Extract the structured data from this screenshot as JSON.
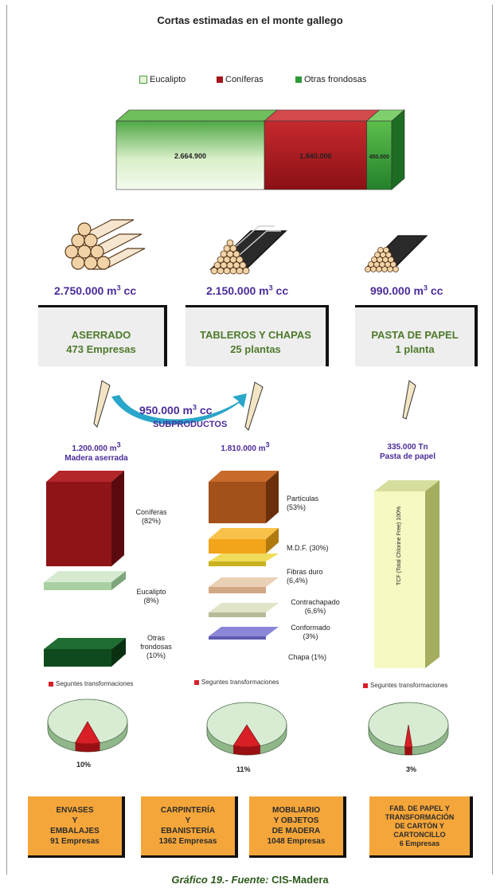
{
  "title": "Cortas estimadas en el monte gallego",
  "legend": [
    "Eucalipto",
    "Coníferas",
    "Otras frondosas"
  ],
  "colors": {
    "eucalipto": "#d9efc9",
    "coniferas": "#a3161b",
    "otras_frondosas": "#2f9a3a",
    "secondary": "#d81f26",
    "industry": "#f5a63a",
    "volume_text": "#4b2c9a"
  },
  "chart_data": [
    {
      "type": "bar",
      "title": "Cortas estimadas en el monte gallego",
      "categories": [
        "Cortas"
      ],
      "series": [
        {
          "name": "Eucalipto",
          "values": [
            2664900
          ],
          "label": "2.664.900"
        },
        {
          "name": "Coníferas",
          "values": [
            1840000
          ],
          "label": "1.840.000"
        },
        {
          "name": "Otras frondosas",
          "values": [
            450000
          ],
          "label": "450.000"
        }
      ],
      "stacked": true,
      "legend": "top"
    },
    {
      "type": "pie",
      "slices": [
        {
          "name": "Seguntes transformaciones",
          "value": 10
        },
        {
          "name": "",
          "value": 90
        }
      ]
    },
    {
      "type": "pie",
      "slices": [
        {
          "name": "Seguntes transformaciones",
          "value": 11
        },
        {
          "name": "",
          "value": 89
        }
      ]
    },
    {
      "type": "pie",
      "slices": [
        {
          "name": "Seguntes transformaciones",
          "value": 3
        },
        {
          "name": "",
          "value": 97
        }
      ]
    }
  ],
  "units": {
    "cube": "3",
    "cc": "cc"
  },
  "columns": [
    {
      "volume": "2.750.000",
      "sector": "ASERRADO",
      "plants": "473 Empresas",
      "product_volume": "1.200.000",
      "product_name": "Madera aserrada",
      "breakdown": [
        {
          "name": "Coníferas",
          "pct": "(82%)"
        },
        {
          "name": "Eucalipto",
          "pct": "(8%)"
        },
        {
          "name1": "Otras",
          "name2": "frondosas",
          "pct": "(10%)"
        }
      ],
      "secondary_pct": "10%"
    },
    {
      "volume": "2.150.000",
      "sector": "TABLEROS Y CHAPAS",
      "plants": "25 plantas",
      "product_volume": "1.810.000",
      "breakdown": [
        {
          "name": "Partículas",
          "pct": "(53%)"
        },
        {
          "label": "M.D.F. (30%)"
        },
        {
          "name": "Fibras duro",
          "pct": "(6,4%)"
        },
        {
          "name": "Contrachapado",
          "pct": "(6,6%)"
        },
        {
          "name": "Conformado",
          "pct": "(3%)"
        },
        {
          "label": "Chapa (1%)"
        }
      ],
      "secondary_pct": "11%"
    },
    {
      "volume": "990.000",
      "sector": "PASTA DE PAPEL",
      "plants": "1 planta",
      "product_volume": "335.000 Tn",
      "product_name": "Pasta de papel",
      "breakdown": [
        {
          "label": "TCF (Total Chlorine Free) 100%"
        }
      ],
      "secondary_pct": "3%"
    }
  ],
  "subproducts": {
    "volume": "950.000",
    "label": "SUBPRODUCTOS"
  },
  "secondary_label": "Seguntes transformaciones",
  "industries": [
    {
      "lines": [
        "ENVASES",
        "Y",
        "EMBALAJES"
      ],
      "companies": "91 Empresas"
    },
    {
      "lines": [
        "CARPINTERÍA",
        "Y",
        "EBANISTERÍA"
      ],
      "companies": "1362 Empresas"
    },
    {
      "lines": [
        "MOBILIARIO",
        "Y OBJETOS",
        "DE MADERA"
      ],
      "companies": "1048 Empresas"
    },
    {
      "lines": [
        "FAB. DE PAPEL Y",
        "TRANSFORMACIÓN",
        "DE CARTÓN Y",
        "CARTONCILLO"
      ],
      "companies": "6 Empresas"
    }
  ],
  "caption": {
    "label": "Gráfico 19.-",
    "source_word": "Fuente:",
    "source": "CIS-Madera"
  }
}
